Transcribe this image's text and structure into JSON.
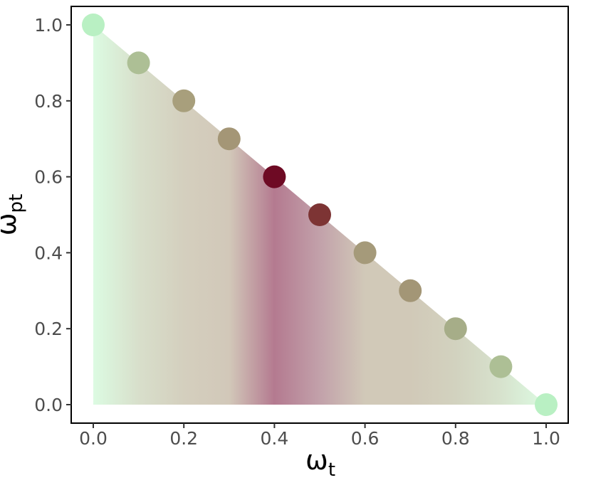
{
  "chart_data": {
    "type": "scatter",
    "title": "",
    "xlabel": {
      "main": "ω",
      "sub": "t"
    },
    "ylabel": {
      "main": "ω",
      "sub": "pt"
    },
    "xlim": [
      0.0,
      1.0
    ],
    "ylim": [
      0.0,
      1.0
    ],
    "x_ticks": [
      "0.0",
      "0.2",
      "0.4",
      "0.6",
      "0.8",
      "1.0"
    ],
    "y_ticks": [
      "0.0",
      "0.2",
      "0.4",
      "0.6",
      "0.8",
      "1.0"
    ],
    "grid": false,
    "legend": "none",
    "points": [
      {
        "x": 0.0,
        "y": 1.0,
        "color": "#b9f0c3"
      },
      {
        "x": 0.1,
        "y": 0.9,
        "color": "#adbf95"
      },
      {
        "x": 0.2,
        "y": 0.8,
        "color": "#a89f7c"
      },
      {
        "x": 0.3,
        "y": 0.7,
        "color": "#a49676"
      },
      {
        "x": 0.4,
        "y": 0.6,
        "color": "#6e0a24"
      },
      {
        "x": 0.5,
        "y": 0.5,
        "color": "#7d3434"
      },
      {
        "x": 0.6,
        "y": 0.4,
        "color": "#a59a7a"
      },
      {
        "x": 0.7,
        "y": 0.3,
        "color": "#a39676"
      },
      {
        "x": 0.8,
        "y": 0.2,
        "color": "#a6ad88"
      },
      {
        "x": 0.9,
        "y": 0.1,
        "color": "#adbf95"
      },
      {
        "x": 1.0,
        "y": 0.0,
        "color": "#b9f0c3"
      }
    ],
    "fill_gradient": [
      {
        "x": 0.0,
        "color": "#dcfbe2"
      },
      {
        "x": 0.1,
        "color": "#d8dfcb"
      },
      {
        "x": 0.2,
        "color": "#d4cfbe"
      },
      {
        "x": 0.3,
        "color": "#d2c8b9"
      },
      {
        "x": 0.4,
        "color": "#b47a90"
      },
      {
        "x": 0.5,
        "color": "#c2a1aa"
      },
      {
        "x": 0.6,
        "color": "#d1c9b8"
      },
      {
        "x": 0.7,
        "color": "#d1c9b8"
      },
      {
        "x": 0.8,
        "color": "#d2d2bf"
      },
      {
        "x": 0.9,
        "color": "#d7e2cd"
      },
      {
        "x": 1.0,
        "color": "#dcfbe2"
      }
    ]
  }
}
